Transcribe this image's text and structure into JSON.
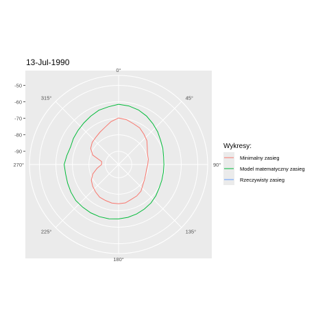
{
  "chart_data": {
    "type": "line",
    "coord": "polar",
    "title": "13-Jul-1990",
    "theta_unit": "degrees",
    "theta_range": [
      0,
      360
    ],
    "theta_ticks": [
      "0°",
      "45°",
      "90°",
      "135°",
      "180°",
      "225°",
      "270°",
      "315°"
    ],
    "theta_tick_values": [
      0,
      45,
      90,
      135,
      180,
      225,
      270,
      315
    ],
    "r_ticks": [
      "-50",
      "-60",
      "-70",
      "-80",
      "-90"
    ],
    "r_tick_values": [
      -50,
      -60,
      -70,
      -80,
      -90
    ],
    "r_range": [
      -98,
      -44
    ],
    "grid": true,
    "legend": {
      "title": "Wykresy:",
      "position": "right",
      "entries": [
        "Minimalny zasieg",
        "Model matematyczny zasieg",
        "Rzeczywisty zasieg"
      ]
    },
    "series": [
      {
        "name": "Minimalny zasieg",
        "color": "#F8766D",
        "theta": [
          0,
          10,
          20,
          30,
          40,
          50,
          60,
          70,
          80,
          90,
          100,
          110,
          120,
          130,
          140,
          150,
          160,
          170,
          180,
          190,
          200,
          210,
          220,
          230,
          240,
          250,
          260,
          270,
          280,
          290,
          300,
          310,
          320,
          330,
          340,
          350
        ],
        "r": [
          -69.8,
          -70.4,
          -71.7,
          -72.4,
          -74.1,
          -75.6,
          -77.9,
          -79.4,
          -79.7,
          -80.3,
          -80.8,
          -80.5,
          -79.8,
          -78.8,
          -76.9,
          -76.0,
          -75.5,
          -74.4,
          -74.2,
          -74.3,
          -74.8,
          -75.1,
          -76.3,
          -77.5,
          -78.9,
          -81.4,
          -84.8,
          -87.7,
          -87.6,
          -81.3,
          -78.5,
          -77.1,
          -76.5,
          -75.4,
          -74.0,
          -71.6
        ]
      },
      {
        "name": "Model matematyczny zasieg",
        "color": "#00BA38",
        "theta": [
          0,
          10,
          20,
          30,
          40,
          50,
          60,
          70,
          80,
          90,
          100,
          110,
          120,
          130,
          140,
          150,
          160,
          170,
          180,
          190,
          200,
          210,
          220,
          230,
          240,
          250,
          260,
          270,
          280,
          290,
          300,
          310,
          320,
          330,
          340,
          350
        ],
        "r": [
          -61.5,
          -62.0,
          -62.8,
          -64.1,
          -65.7,
          -67.1,
          -68.6,
          -69.5,
          -70.3,
          -70.5,
          -70.4,
          -70.1,
          -69.6,
          -68.5,
          -67.5,
          -66.8,
          -66.1,
          -65.5,
          -65.0,
          -64.6,
          -64.3,
          -64.2,
          -64.2,
          -64.1,
          -64.6,
          -65.1,
          -65.4,
          -65.0,
          -66.2,
          -67.0,
          -66.4,
          -65.9,
          -65.2,
          -64.2,
          -63.0,
          -62.5
        ]
      },
      {
        "name": "Rzeczywisty zasieg",
        "color": "#619CFF",
        "theta": [],
        "r": []
      }
    ]
  }
}
